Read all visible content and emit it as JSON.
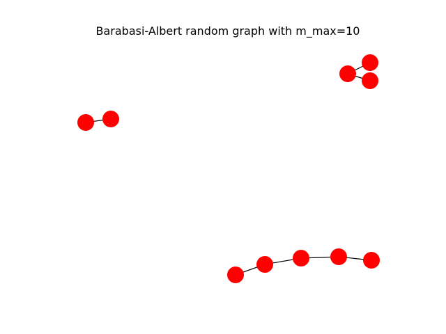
{
  "title": "Barabasi-Albert random graph with m_max=10",
  "colors": {
    "node": "#ff0000",
    "edge": "#000000",
    "background": "#ffffff"
  },
  "graph": {
    "node_count": 10,
    "edges": [
      [
        0,
        1
      ],
      [
        2,
        3
      ],
      [
        2,
        4
      ],
      [
        5,
        6
      ],
      [
        6,
        7
      ],
      [
        7,
        8
      ],
      [
        8,
        9
      ]
    ],
    "components": [
      [
        0,
        1
      ],
      [
        2,
        3,
        4
      ],
      [
        5,
        6,
        7,
        8,
        9
      ]
    ]
  }
}
